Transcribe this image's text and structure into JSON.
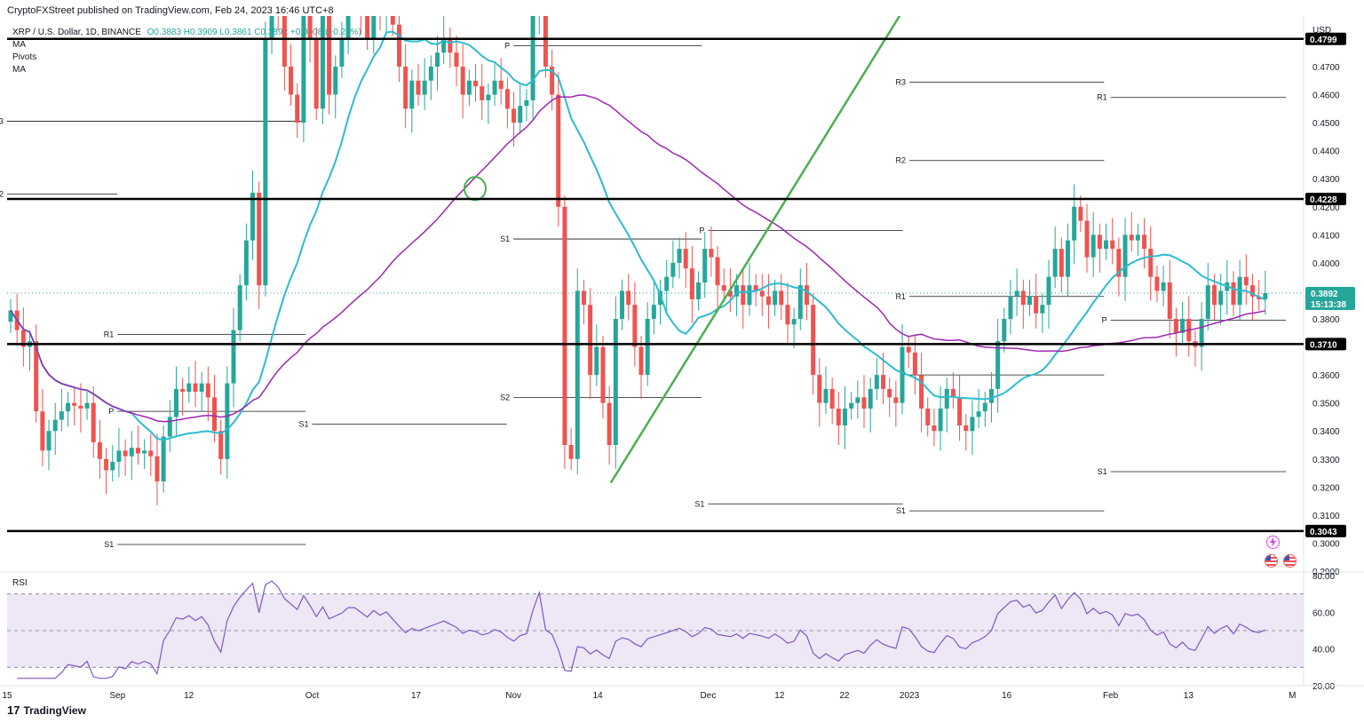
{
  "header": {
    "publisher": "CryptoFXStreet published on TradingView.com, Feb 24, 2023 16:46 UTC+8",
    "symbol": "XRP / U.S. Dollar, 1D, BINANCE",
    "ohlc": "O0.3883 H0.3909 L0.3861 C0.3892 +0.0008 (+0.21%)",
    "indicators": [
      "MA",
      "Pivots",
      "MA"
    ]
  },
  "footer": {
    "brand": "TradingView"
  },
  "colors": {
    "up": "#26a69a",
    "down": "#ef5350",
    "ma_fast": "#2cbccf",
    "ma_slow": "#9c27b0",
    "trendline": "#4caf50",
    "markers": "#f28b82",
    "rsi": "#7e57c2",
    "rsi_band": "#ede7f6",
    "price_badge": "#26a69a"
  },
  "chart_data": [
    {
      "type": "candlestick",
      "title": "XRP / U.S. Dollar, 1D, BINANCE",
      "y_axis": {
        "unit": "USD",
        "ylim": [
          0.29,
          0.483
        ],
        "ticks": [
          0.29,
          0.3,
          0.31,
          0.32,
          0.33,
          0.34,
          0.35,
          0.36,
          0.37,
          0.38,
          0.39,
          0.4,
          0.41,
          0.42,
          0.43,
          0.44,
          0.45,
          0.46,
          0.47
        ],
        "tick_labels": [
          "0.2900",
          "0.3000",
          "0.3100",
          "0.3200",
          "0.3300",
          "0.3400",
          "0.3500",
          "0.3600",
          "0.3700",
          "0.3800",
          "0.3900",
          "0.4000",
          "0.4100",
          "0.4200",
          "0.4300",
          "0.4400",
          "0.4500",
          "0.4600",
          "0.4700"
        ]
      },
      "x_axis": {
        "range": [
          "2022-08-15",
          "2023-02-28"
        ],
        "ticks": [
          {
            "label": "15",
            "date": "2022-08-15"
          },
          {
            "label": "Sep",
            "date": "2022-09-01"
          },
          {
            "label": "12",
            "date": "2022-09-12"
          },
          {
            "label": "Oct",
            "date": "2022-10-01"
          },
          {
            "label": "17",
            "date": "2022-10-17"
          },
          {
            "label": "Nov",
            "date": "2022-11-01"
          },
          {
            "label": "14",
            "date": "2022-11-14"
          },
          {
            "label": "Dec",
            "date": "2022-12-01"
          },
          {
            "label": "12",
            "date": "2022-12-12"
          },
          {
            "label": "22",
            "date": "2022-12-22"
          },
          {
            "label": "2023",
            "date": "2023-01-01"
          },
          {
            "label": "16",
            "date": "2023-01-16"
          },
          {
            "label": "Feb",
            "date": "2023-02-01"
          },
          {
            "label": "13",
            "date": "2023-02-13"
          },
          {
            "label": "M",
            "date": "2023-03-01"
          }
        ]
      },
      "close_series": [
        0.383,
        0.376,
        0.37,
        0.372,
        0.347,
        0.333,
        0.34,
        0.344,
        0.347,
        0.35,
        0.349,
        0.348,
        0.35,
        0.336,
        0.33,
        0.326,
        0.329,
        0.333,
        0.331,
        0.334,
        0.332,
        0.333,
        0.331,
        0.322,
        0.338,
        0.345,
        0.355,
        0.354,
        0.357,
        0.354,
        0.357,
        0.352,
        0.34,
        0.33,
        0.357,
        0.376,
        0.392,
        0.408,
        0.425,
        0.392,
        0.48,
        0.5,
        0.49,
        0.47,
        0.46,
        0.45,
        0.5,
        0.48,
        0.455,
        0.49,
        0.46,
        0.47,
        0.48,
        0.5,
        0.5,
        0.49,
        0.48,
        0.5,
        0.49,
        0.5,
        0.485,
        0.47,
        0.455,
        0.465,
        0.46,
        0.465,
        0.47,
        0.475,
        0.48,
        0.475,
        0.47,
        0.46,
        0.465,
        0.463,
        0.458,
        0.46,
        0.465,
        0.462,
        0.455,
        0.45,
        0.456,
        0.458,
        0.49,
        0.53,
        0.47,
        0.46,
        0.42,
        0.335,
        0.33,
        0.39,
        0.385,
        0.36,
        0.37,
        0.35,
        0.335,
        0.38,
        0.39,
        0.385,
        0.37,
        0.36,
        0.38,
        0.385,
        0.39,
        0.395,
        0.4,
        0.405,
        0.398,
        0.387,
        0.393,
        0.405,
        0.402,
        0.392,
        0.39,
        0.388,
        0.392,
        0.385,
        0.392,
        0.39,
        0.388,
        0.385,
        0.39,
        0.385,
        0.378,
        0.38,
        0.392,
        0.385,
        0.36,
        0.35,
        0.355,
        0.348,
        0.342,
        0.348,
        0.35,
        0.352,
        0.348,
        0.355,
        0.36,
        0.355,
        0.352,
        0.35,
        0.37,
        0.368,
        0.36,
        0.348,
        0.342,
        0.34,
        0.348,
        0.355,
        0.352,
        0.342,
        0.34,
        0.345,
        0.347,
        0.35,
        0.355,
        0.372,
        0.38,
        0.388,
        0.39,
        0.385,
        0.388,
        0.382,
        0.385,
        0.395,
        0.405,
        0.395,
        0.408,
        0.42,
        0.415,
        0.402,
        0.41,
        0.405,
        0.408,
        0.405,
        0.395,
        0.41,
        0.408,
        0.41,
        0.405,
        0.395,
        0.39,
        0.393,
        0.38,
        0.375,
        0.38,
        0.372,
        0.37,
        0.38,
        0.392,
        0.385,
        0.39,
        0.393,
        0.385,
        0.395,
        0.392,
        0.388,
        0.387,
        0.3892
      ],
      "current_price": {
        "value": 0.3892,
        "label": "0.3892",
        "countdown": "15:13:38"
      },
      "horizontal_levels": [
        {
          "value": 0.4799,
          "label": "0.4799"
        },
        {
          "value": 0.4228,
          "label": "0.4228"
        },
        {
          "value": 0.371,
          "label": "0.3710"
        },
        {
          "value": 0.3043,
          "label": "0.3043"
        }
      ],
      "pivot_labels": [
        {
          "label": "R3",
          "value": 0.4505,
          "start": "2022-08-15",
          "end": "2022-09-30"
        },
        {
          "label": "R2",
          "value": 0.4245,
          "start": "2022-08-15",
          "end": "2022-09-01"
        },
        {
          "label": "R1",
          "value": 0.3745,
          "start": "2022-09-01",
          "end": "2022-09-30"
        },
        {
          "label": "P",
          "value": 0.347,
          "start": "2022-09-01",
          "end": "2022-09-30"
        },
        {
          "label": "S1",
          "value": 0.2995,
          "start": "2022-09-01",
          "end": "2022-09-30"
        },
        {
          "label": "S1",
          "value": 0.3425,
          "start": "2022-10-01",
          "end": "2022-10-31"
        },
        {
          "label": "P",
          "value": 0.4775,
          "start": "2022-11-01",
          "end": "2022-11-30"
        },
        {
          "label": "S1",
          "value": 0.4085,
          "start": "2022-11-01",
          "end": "2022-11-30"
        },
        {
          "label": "S2",
          "value": 0.352,
          "start": "2022-11-01",
          "end": "2022-11-30"
        },
        {
          "label": "P",
          "value": 0.4115,
          "start": "2022-12-01",
          "end": "2022-12-31"
        },
        {
          "label": "S1",
          "value": 0.314,
          "start": "2022-12-01",
          "end": "2022-12-31"
        },
        {
          "label": "R3",
          "value": 0.4645,
          "start": "2023-01-01",
          "end": "2023-01-31"
        },
        {
          "label": "R2",
          "value": 0.4365,
          "start": "2023-01-01",
          "end": "2023-01-31"
        },
        {
          "label": "R1",
          "value": 0.388,
          "start": "2023-01-01",
          "end": "2023-01-31"
        },
        {
          "label": "P",
          "value": 0.36,
          "start": "2023-01-01",
          "end": "2023-01-31"
        },
        {
          "label": "S1",
          "value": 0.3115,
          "start": "2023-01-01",
          "end": "2023-01-31"
        },
        {
          "label": "R1",
          "value": 0.459,
          "start": "2023-02-01",
          "end": "2023-02-28"
        },
        {
          "label": "P",
          "value": 0.3795,
          "start": "2023-02-01",
          "end": "2023-02-28"
        },
        {
          "label": "S1",
          "value": 0.3255,
          "start": "2023-02-01",
          "end": "2023-02-28"
        }
      ],
      "grid": false
    },
    {
      "type": "line",
      "title": "RSI",
      "ylim": [
        20,
        80
      ],
      "ticks": [
        "20.00",
        "40.00",
        "60.00",
        "80.00"
      ],
      "bands": [
        30,
        50,
        70
      ],
      "grid": false
    }
  ],
  "icons": [
    "lightning-icon",
    "us-flag-icon",
    "us-flag-icon"
  ]
}
